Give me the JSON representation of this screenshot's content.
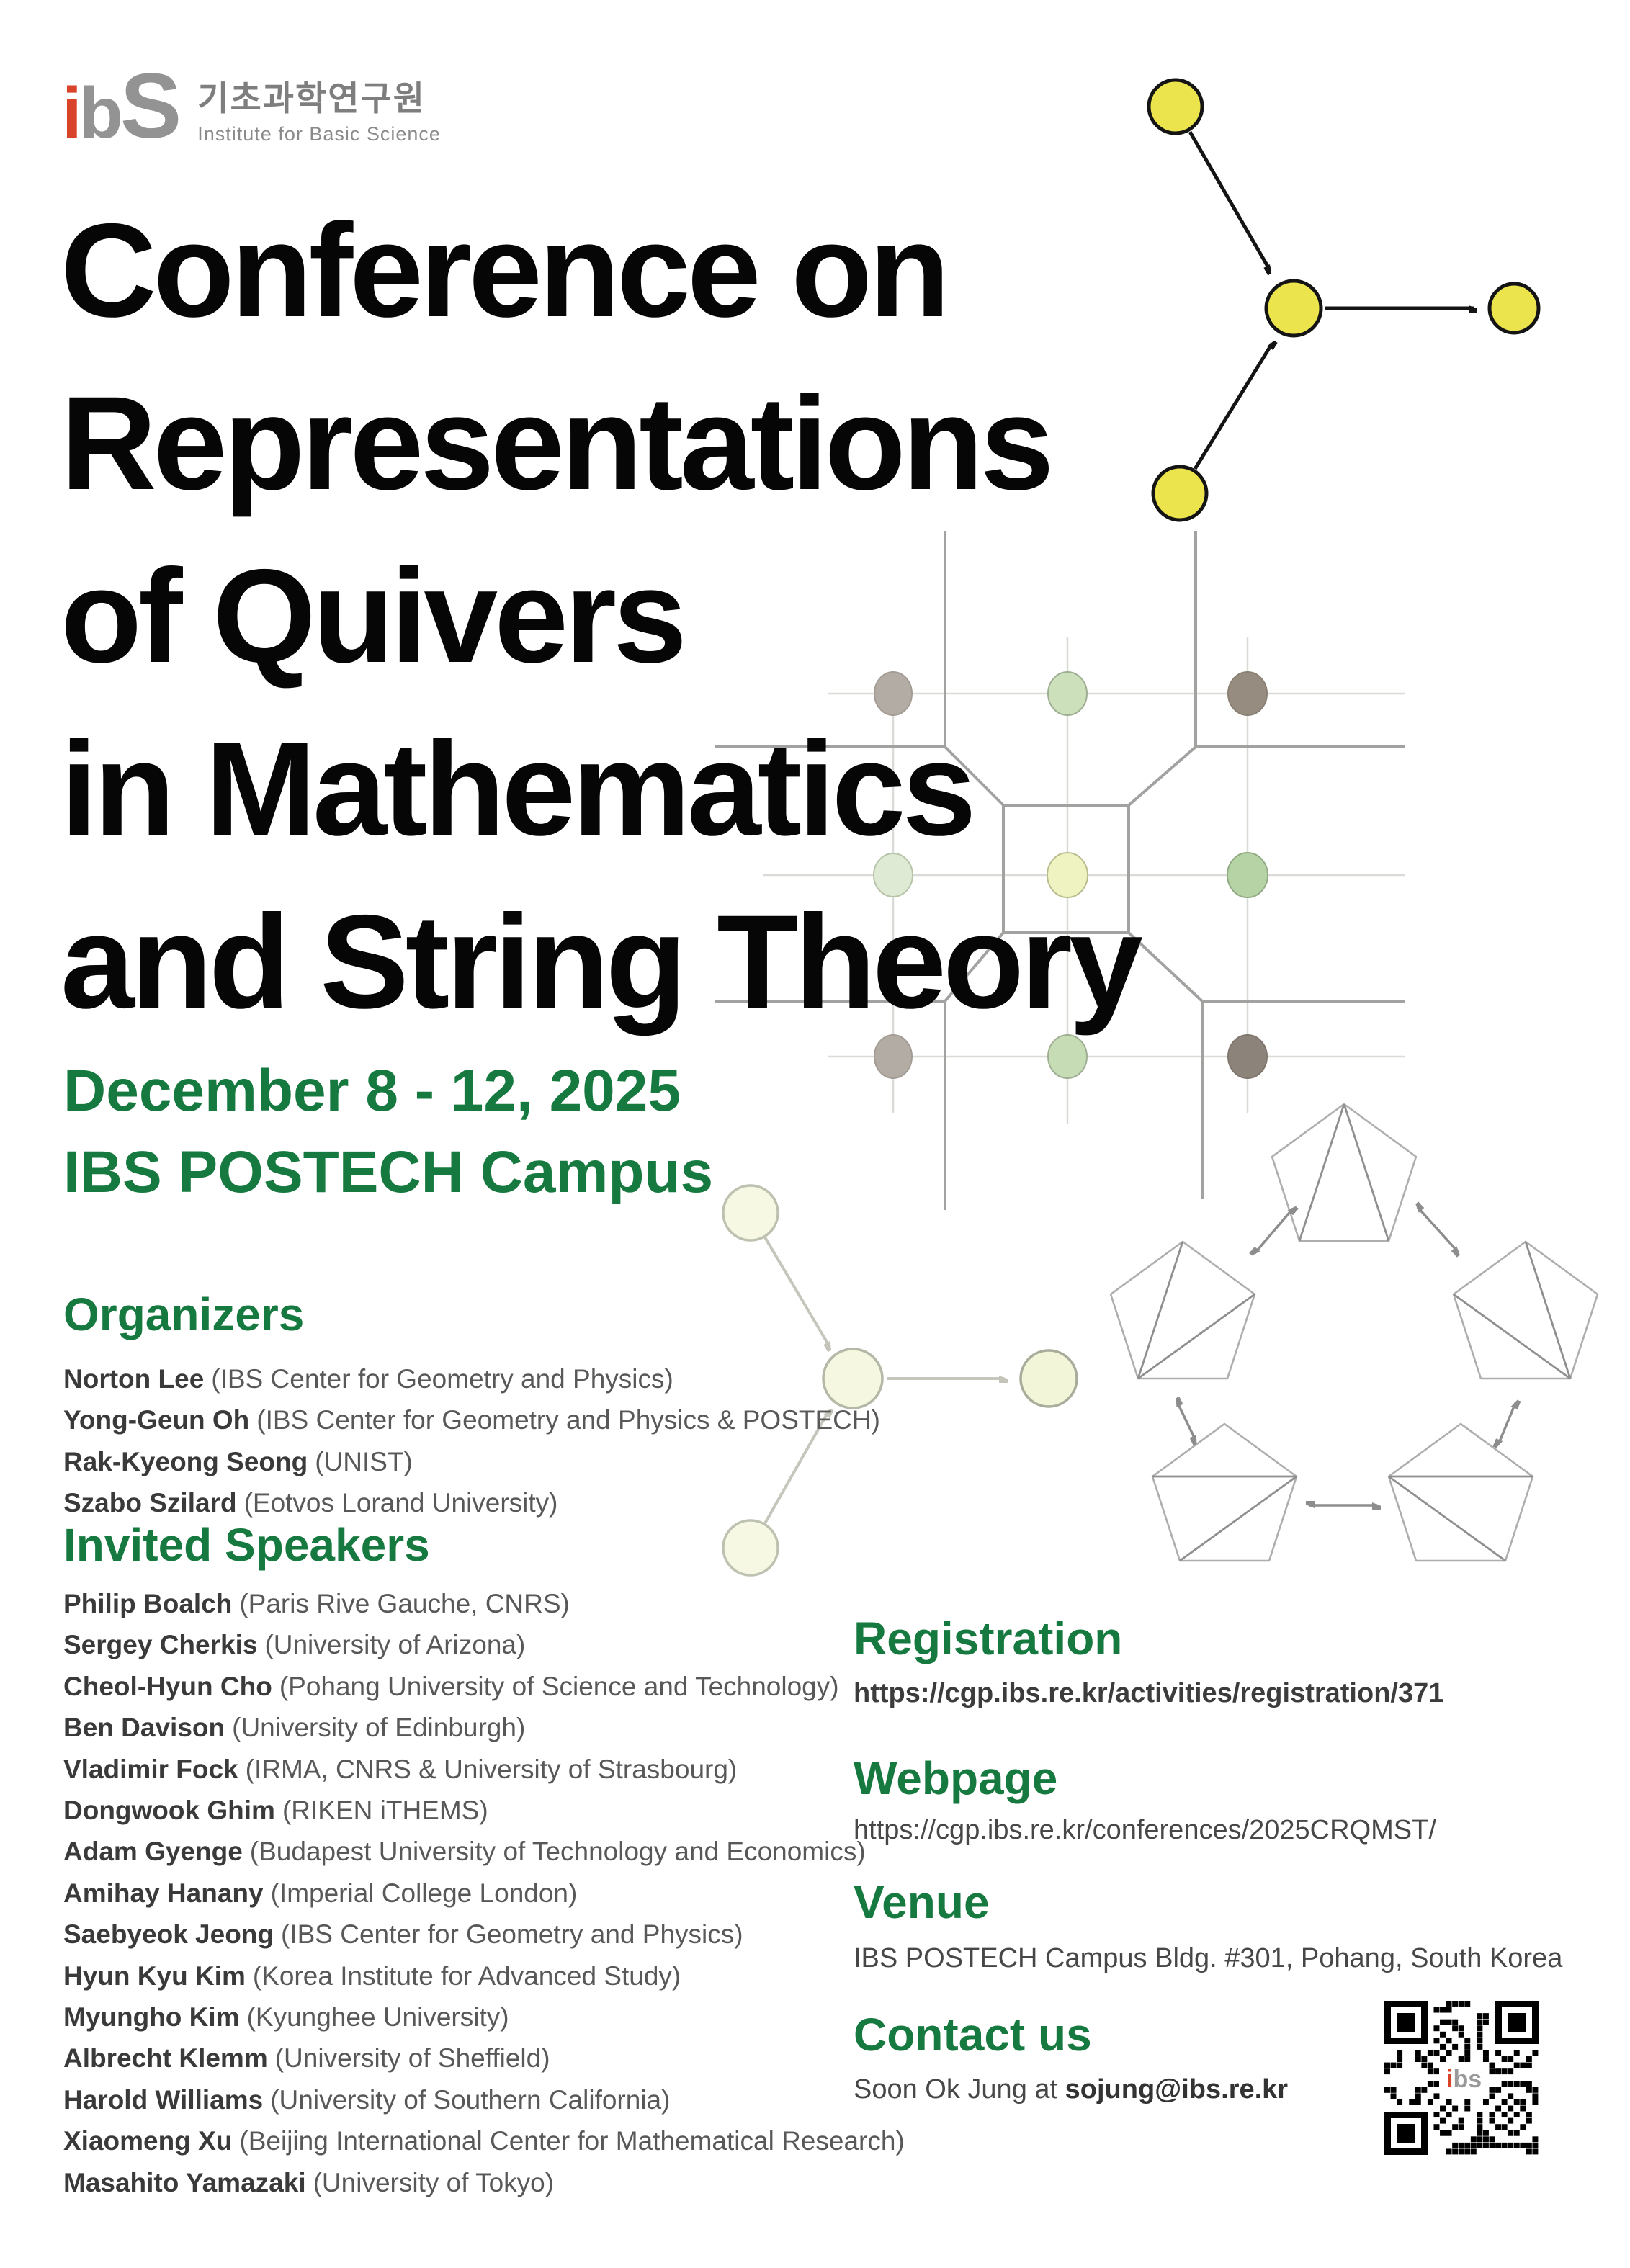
{
  "logo": {
    "mark_i": "i",
    "mark_b": "b",
    "mark_s": "S",
    "korean_name": "기초과학연구원",
    "english_name": "Institute for Basic Science"
  },
  "title": {
    "lines": [
      "Conference on",
      "Representations",
      "of Quivers",
      "in Mathematics",
      "and String Theory"
    ]
  },
  "event": {
    "dates": "December 8 - 12, 2025",
    "location": "IBS POSTECH Campus"
  },
  "sections": {
    "organizers_heading": "Organizers",
    "speakers_heading": "Invited Speakers",
    "registration": {
      "heading": "Registration",
      "url": "https://cgp.ibs.re.kr/activities/registration/371"
    },
    "webpage": {
      "heading": "Webpage",
      "url": "https://cgp.ibs.re.kr/conferences/2025CRQMST/"
    },
    "venue": {
      "heading": "Venue",
      "address": "IBS POSTECH Campus Bldg. #301, Pohang, South Korea"
    },
    "contact": {
      "heading": "Contact us",
      "prefix": "Soon Ok Jung at ",
      "email": "sojung@ibs.re.kr"
    }
  },
  "organizers": [
    {
      "name": "Norton Lee",
      "affiliation": "(IBS Center for Geometry and Physics)"
    },
    {
      "name": "Yong-Geun Oh",
      "affiliation": "(IBS Center for Geometry and Physics & POSTECH)"
    },
    {
      "name": "Rak-Kyeong Seong",
      "affiliation": "(UNIST)"
    },
    {
      "name": "Szabo Szilard",
      "affiliation": "(Eotvos Lorand University)"
    }
  ],
  "speakers": [
    {
      "name": "Philip Boalch",
      "affiliation": "(Paris Rive Gauche, CNRS)"
    },
    {
      "name": "Sergey Cherkis",
      "affiliation": "(University of Arizona)"
    },
    {
      "name": "Cheol-Hyun Cho",
      "affiliation": "(Pohang University of Science and Technology)"
    },
    {
      "name": "Ben Davison",
      "affiliation": "(University of Edinburgh)"
    },
    {
      "name": "Vladimir Fock",
      "affiliation": "(IRMA, CNRS & University of Strasbourg)"
    },
    {
      "name": "Dongwook Ghim",
      "affiliation": "(RIKEN iTHEMS)"
    },
    {
      "name": "Adam Gyenge",
      "affiliation": "(Budapest University of Technology and Economics)"
    },
    {
      "name": "Amihay Hanany",
      "affiliation": "(Imperial College London)"
    },
    {
      "name": "Saebyeok Jeong",
      "affiliation": "(IBS Center for Geometry and Physics)"
    },
    {
      "name": "Hyun Kyu Kim",
      "affiliation": "(Korea Institute for Advanced Study)"
    },
    {
      "name": "Myungho Kim",
      "affiliation": "(Kyunghee University)"
    },
    {
      "name": "Albrecht Klemm",
      "affiliation": "(University of Sheffield)"
    },
    {
      "name": "Harold Williams",
      "affiliation": "(University of Southern California)"
    },
    {
      "name": "Xiaomeng Xu",
      "affiliation": "(Beijing International Center for Mathematical Research)"
    },
    {
      "name": "Masahito Yamazaki",
      "affiliation": "(University of Tokyo)"
    }
  ],
  "colors": {
    "heading_green": "#16793f",
    "quiver_yellow": "#ebe44d",
    "logo_red": "#d8432a",
    "text_dark": "#3a3a3a"
  }
}
